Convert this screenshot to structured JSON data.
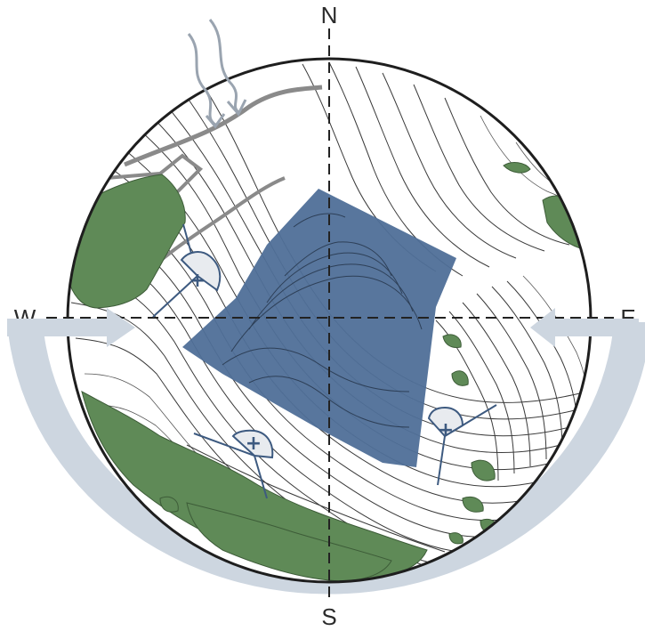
{
  "compass": {
    "north": "N",
    "south": "S",
    "east": "E",
    "west": "W"
  },
  "colors": {
    "water_body": "#4f6f98",
    "vegetation": "#5f8a57",
    "wind_band": "#cdd6e0",
    "contours": "#3a3a3a",
    "sun_marker": "#3d5a80"
  },
  "icons": {
    "wind_arrows": "wave-arrow-icon",
    "sun_markers": "plus-icon"
  },
  "sun_markers": [
    {
      "symbol": "+"
    },
    {
      "symbol": "+"
    },
    {
      "symbol": "+"
    }
  ]
}
